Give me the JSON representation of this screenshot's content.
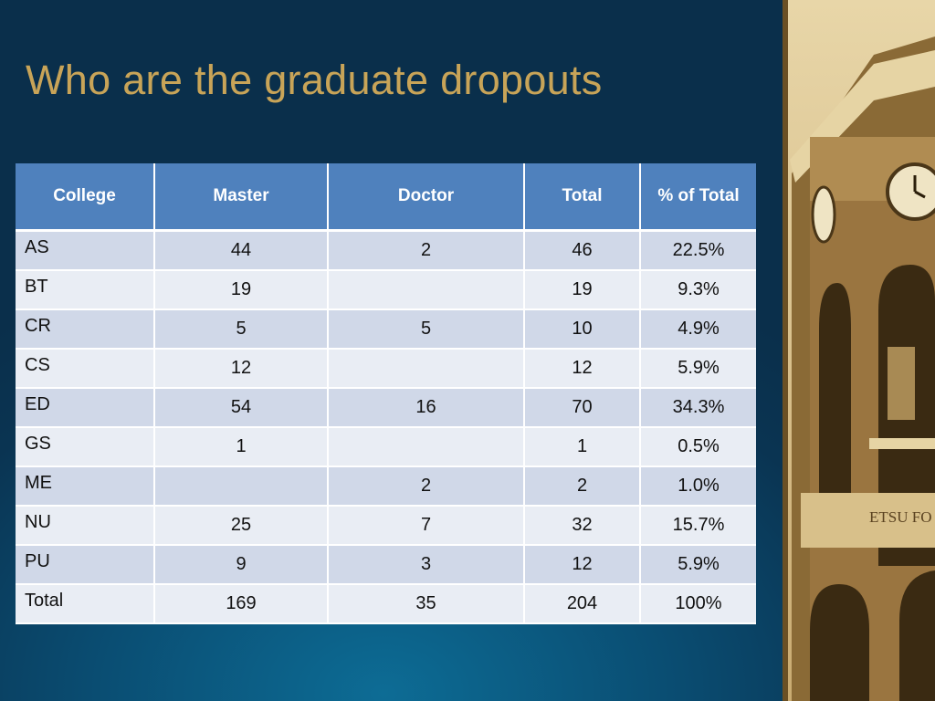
{
  "title": "Who are the graduate dropouts",
  "table": {
    "header": [
      "College",
      "Master",
      "Doctor",
      "Total",
      "% of Total"
    ],
    "rows": [
      [
        "AS",
        "44",
        "2",
        "46",
        "22.5%"
      ],
      [
        "BT",
        "19",
        null,
        "19",
        "9.3%"
      ],
      [
        "CR",
        "5",
        "5",
        "10",
        "4.9%"
      ],
      [
        "CS",
        "12",
        null,
        "12",
        "5.9%"
      ],
      [
        "ED",
        "54",
        "16",
        "70",
        "34.3%"
      ],
      [
        "GS",
        "1",
        null,
        "1",
        "0.5%"
      ],
      [
        "ME",
        null,
        "2",
        "2",
        "1.0%"
      ],
      [
        "NU",
        "25",
        "7",
        "32",
        "15.7%"
      ],
      [
        "PU",
        "9",
        "3",
        "12",
        "5.9%"
      ],
      [
        "Total",
        "169",
        "35",
        "204",
        "100%"
      ]
    ]
  },
  "photo": {
    "inscription": "ETSU FO"
  }
}
